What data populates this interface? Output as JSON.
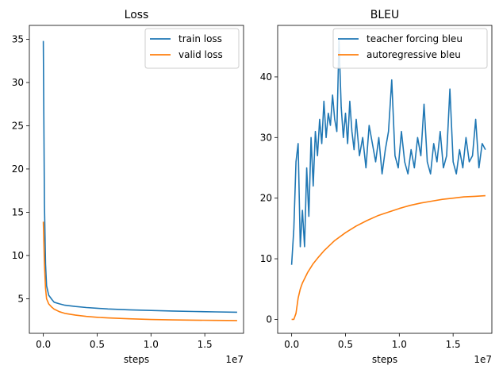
{
  "chart_data": [
    {
      "type": "line",
      "title": "Loss",
      "xlabel": "steps",
      "ylabel": "",
      "x_offset_label": "1e7",
      "xlim": [
        -0.13,
        1.86
      ],
      "ylim": [
        1.0,
        36.6
      ],
      "x_ticks": [
        0.0,
        0.5,
        1.0,
        1.5
      ],
      "x_tick_labels": [
        "0.0",
        "0.5",
        "1.0",
        "1.5"
      ],
      "y_ticks": [
        5,
        10,
        15,
        20,
        25,
        30,
        35
      ],
      "y_tick_labels": [
        "5",
        "10",
        "15",
        "20",
        "25",
        "30",
        "35"
      ],
      "grid": false,
      "legend_position": "upper right",
      "series": [
        {
          "name": "train loss",
          "color": "#1f77b4",
          "x": [
            0.0,
            0.01,
            0.02,
            0.03,
            0.05,
            0.08,
            0.1,
            0.15,
            0.2,
            0.3,
            0.4,
            0.5,
            0.6,
            0.8,
            1.0,
            1.2,
            1.4,
            1.6,
            1.8
          ],
          "y": [
            34.8,
            16.0,
            9.0,
            6.5,
            5.4,
            4.9,
            4.6,
            4.4,
            4.25,
            4.1,
            3.98,
            3.9,
            3.82,
            3.72,
            3.64,
            3.58,
            3.52,
            3.48,
            3.44
          ]
        },
        {
          "name": "valid loss",
          "color": "#ff7f0e",
          "x": [
            0.0,
            0.01,
            0.02,
            0.03,
            0.05,
            0.08,
            0.1,
            0.15,
            0.2,
            0.3,
            0.4,
            0.5,
            0.6,
            0.8,
            1.0,
            1.2,
            1.4,
            1.6,
            1.8
          ],
          "y": [
            13.9,
            9.0,
            6.2,
            5.0,
            4.4,
            4.0,
            3.8,
            3.5,
            3.3,
            3.1,
            2.95,
            2.85,
            2.78,
            2.68,
            2.6,
            2.55,
            2.52,
            2.5,
            2.48
          ]
        }
      ]
    },
    {
      "type": "line",
      "title": "BLEU",
      "xlabel": "steps",
      "ylabel": "",
      "x_offset_label": "1e7",
      "xlim": [
        -0.13,
        1.86
      ],
      "ylim": [
        -2.3,
        48.5
      ],
      "x_ticks": [
        0.0,
        0.5,
        1.0,
        1.5
      ],
      "x_tick_labels": [
        "0.0",
        "0.5",
        "1.0",
        "1.5"
      ],
      "y_ticks": [
        0,
        10,
        20,
        30,
        40
      ],
      "y_tick_labels": [
        "0",
        "10",
        "20",
        "30",
        "40"
      ],
      "grid": false,
      "legend_position": "upper right",
      "series": [
        {
          "name": "teacher forcing bleu",
          "color": "#1f77b4",
          "x": [
            0.0,
            0.02,
            0.04,
            0.06,
            0.08,
            0.1,
            0.12,
            0.14,
            0.16,
            0.18,
            0.2,
            0.22,
            0.24,
            0.26,
            0.28,
            0.3,
            0.32,
            0.34,
            0.36,
            0.38,
            0.4,
            0.42,
            0.44,
            0.46,
            0.48,
            0.5,
            0.52,
            0.54,
            0.56,
            0.58,
            0.6,
            0.63,
            0.66,
            0.69,
            0.72,
            0.75,
            0.78,
            0.81,
            0.84,
            0.87,
            0.9,
            0.93,
            0.96,
            0.99,
            1.02,
            1.05,
            1.08,
            1.11,
            1.14,
            1.17,
            1.2,
            1.23,
            1.26,
            1.29,
            1.32,
            1.35,
            1.38,
            1.41,
            1.44,
            1.47,
            1.5,
            1.53,
            1.56,
            1.59,
            1.62,
            1.65,
            1.68,
            1.71,
            1.74,
            1.77,
            1.8
          ],
          "y": [
            9.0,
            15.0,
            26.0,
            29.0,
            12.0,
            18.0,
            12.0,
            25.0,
            17.0,
            30.0,
            22.0,
            31.0,
            27.0,
            33.0,
            29.0,
            36.0,
            30.0,
            34.0,
            32.0,
            37.0,
            33.0,
            31.0,
            46.0,
            35.0,
            30.0,
            34.0,
            29.0,
            36.0,
            31.0,
            28.0,
            33.0,
            27.0,
            30.0,
            25.0,
            32.0,
            29.0,
            26.0,
            30.0,
            24.0,
            28.0,
            31.0,
            39.5,
            27.0,
            25.0,
            31.0,
            26.0,
            24.0,
            28.0,
            25.0,
            30.0,
            27.0,
            35.5,
            26.0,
            24.0,
            29.0,
            26.0,
            31.0,
            25.0,
            27.0,
            38.0,
            26.0,
            24.0,
            28.0,
            25.0,
            30.0,
            26.0,
            27.0,
            33.0,
            25.0,
            29.0,
            28.0
          ]
        },
        {
          "name": "autoregressive bleu",
          "color": "#ff7f0e",
          "x": [
            0.0,
            0.02,
            0.04,
            0.06,
            0.08,
            0.1,
            0.15,
            0.2,
            0.25,
            0.3,
            0.4,
            0.5,
            0.6,
            0.7,
            0.8,
            0.9,
            1.0,
            1.1,
            1.2,
            1.3,
            1.4,
            1.5,
            1.6,
            1.7,
            1.8
          ],
          "y": [
            0.0,
            0.0,
            1.0,
            3.5,
            5.0,
            6.0,
            7.8,
            9.2,
            10.3,
            11.3,
            13.0,
            14.3,
            15.4,
            16.3,
            17.1,
            17.7,
            18.3,
            18.8,
            19.2,
            19.5,
            19.8,
            20.0,
            20.2,
            20.3,
            20.4
          ]
        }
      ]
    }
  ]
}
